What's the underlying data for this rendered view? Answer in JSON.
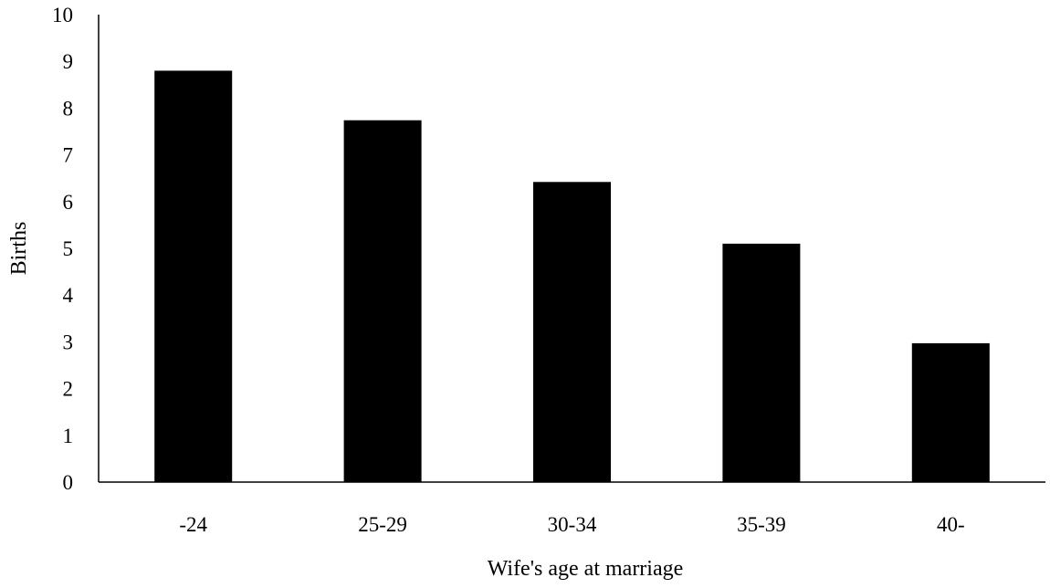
{
  "chart_data": {
    "type": "bar",
    "title": "",
    "xlabel": "Wife's age at marriage",
    "ylabel": "Births",
    "categories": [
      "-24",
      "25-29",
      "30-34",
      "35-39",
      "40-"
    ],
    "values": [
      8.8,
      7.74,
      6.42,
      5.1,
      2.97
    ],
    "ylim": [
      0,
      10
    ],
    "yticks": [
      "0",
      "1",
      "2",
      "3",
      "4",
      "5",
      "6",
      "7",
      "8",
      "9",
      "10"
    ],
    "grid": false,
    "legend": "none",
    "bar_color": "#000000"
  }
}
